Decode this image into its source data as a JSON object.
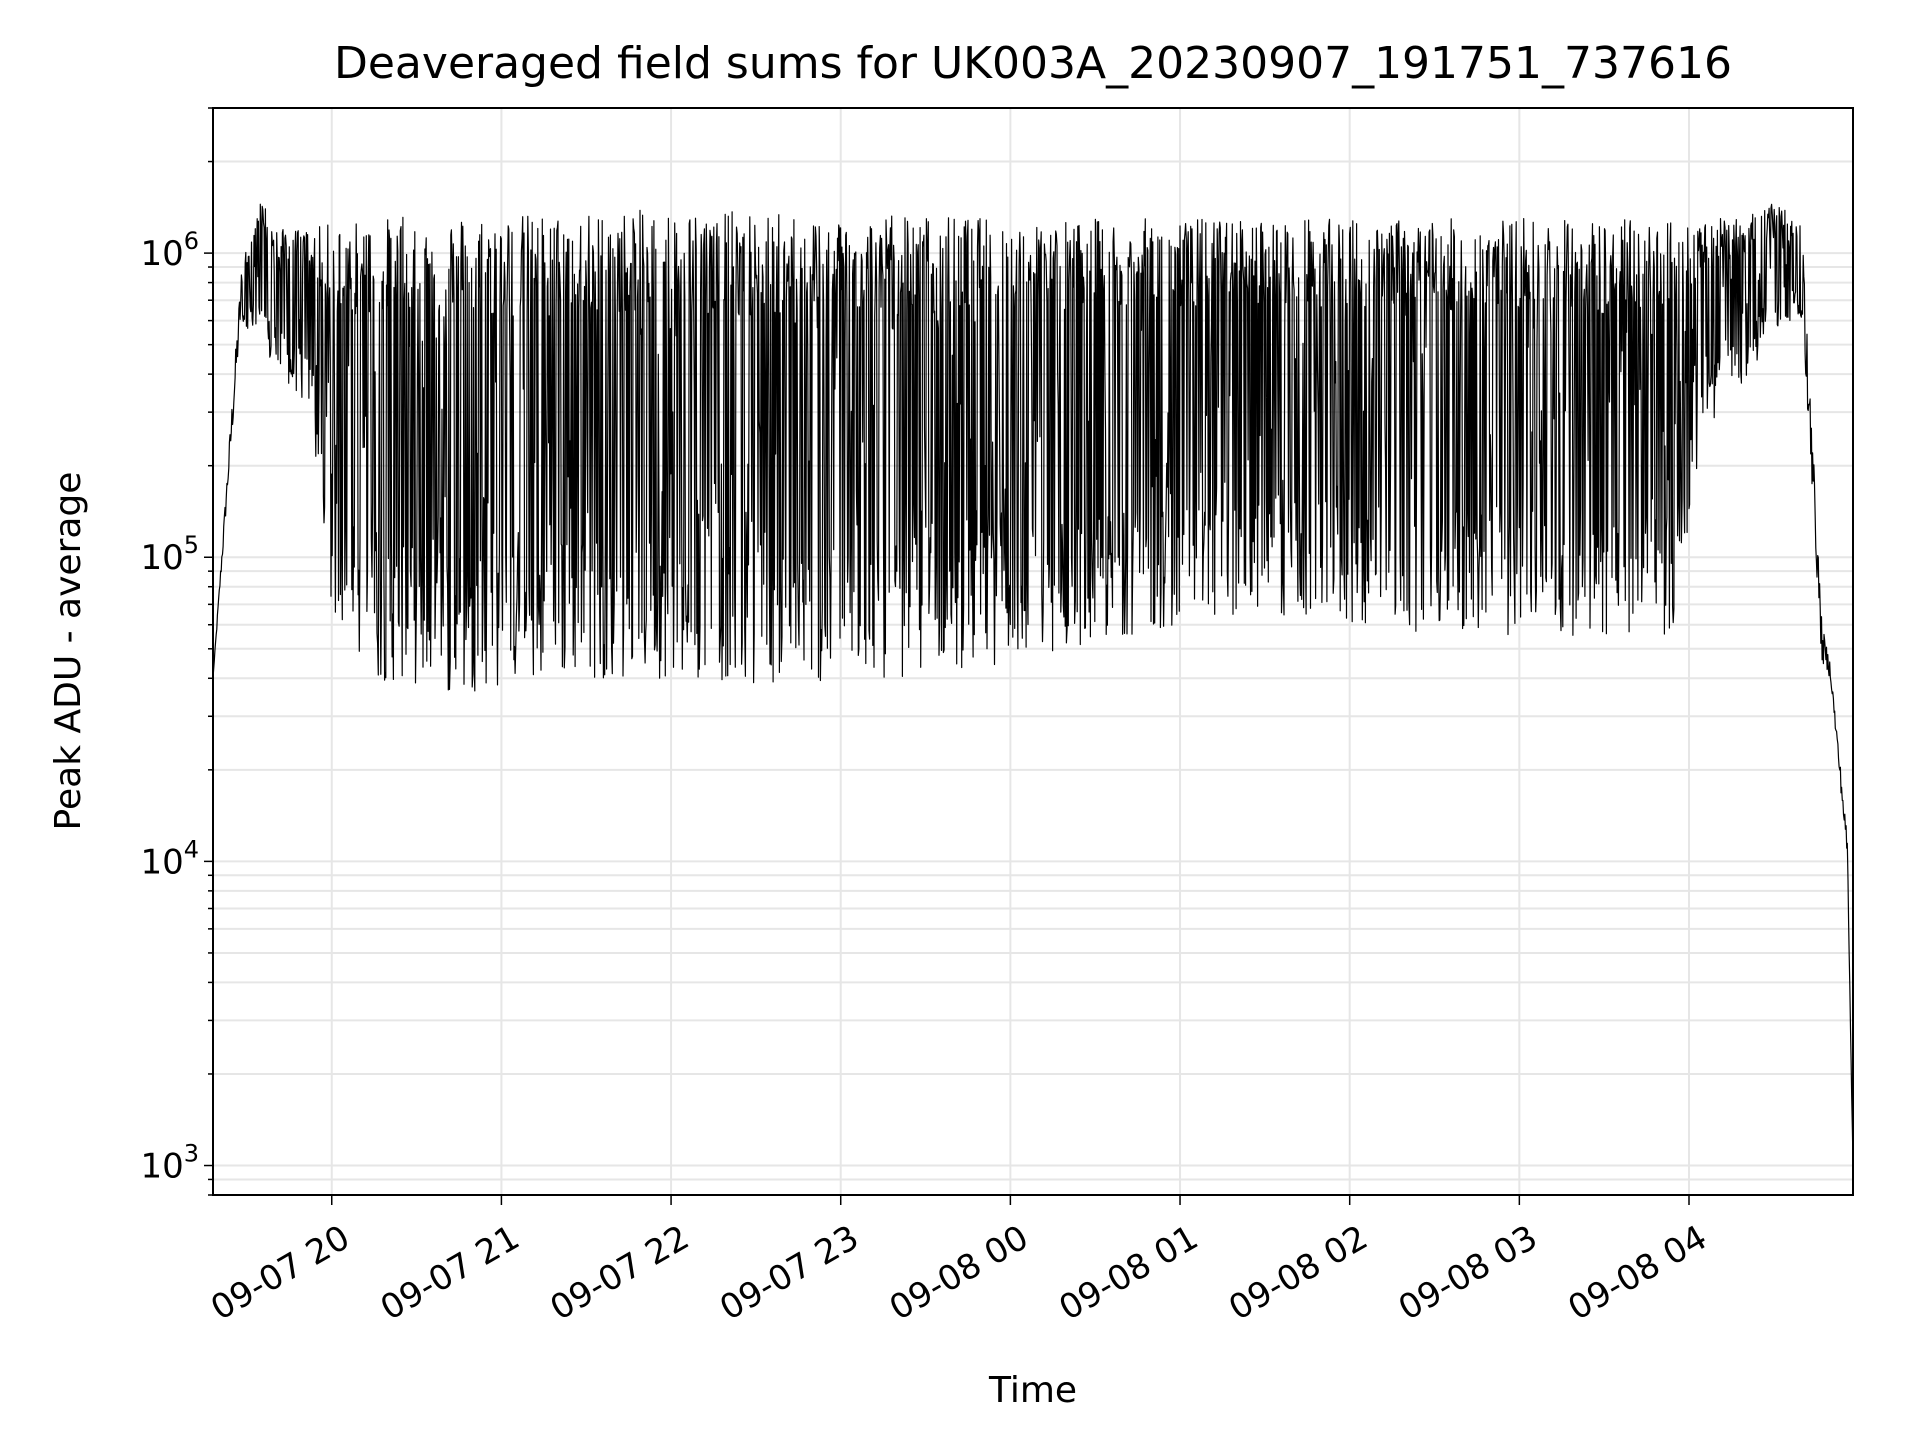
{
  "chart_data": {
    "type": "line",
    "title": "Deaveraged field sums for UK003A_20230907_191751_737616",
    "xlabel": "Time",
    "ylabel": "Peak ADU - average",
    "yscale": "log",
    "ylim": [
      800,
      3000000
    ],
    "xlim": [
      "2023-09-07 19:18",
      "2023-09-08 04:58"
    ],
    "grid": true,
    "line_color": "#000000",
    "x_ticks": [
      "09-07 20",
      "09-07 21",
      "09-07 22",
      "09-07 23",
      "09-08 00",
      "09-08 01",
      "09-08 02",
      "09-08 03",
      "09-08 04"
    ],
    "y_ticks": [
      {
        "base": "10",
        "exp": "3",
        "value": 1000
      },
      {
        "base": "10",
        "exp": "4",
        "value": 10000
      },
      {
        "base": "10",
        "exp": "5",
        "value": 100000
      },
      {
        "base": "10",
        "exp": "6",
        "value": 1000000
      }
    ],
    "envelope": {
      "times": [
        "2023-09-07 19:18",
        "2023-09-07 19:28",
        "2023-09-07 19:35",
        "2023-09-07 19:40",
        "2023-09-07 19:53",
        "2023-09-07 19:58",
        "2023-09-07 20:15",
        "2023-09-07 20:40",
        "2023-09-07 21:20",
        "2023-09-07 22:00",
        "2023-09-07 22:40",
        "2023-09-07 23:20",
        "2023-09-08 00:00",
        "2023-09-08 00:40",
        "2023-09-08 01:20",
        "2023-09-08 02:00",
        "2023-09-08 02:40",
        "2023-09-08 03:20",
        "2023-09-08 03:55",
        "2023-09-08 04:05",
        "2023-09-08 04:18",
        "2023-09-08 04:33",
        "2023-09-08 04:40",
        "2023-09-08 04:47",
        "2023-09-08 04:50",
        "2023-09-08 04:56",
        "2023-09-08 04:58"
      ],
      "upper": [
        40000,
        900000,
        1500000,
        1200000,
        1200000,
        1250000,
        1300000,
        1350000,
        1350000,
        1400000,
        1350000,
        1350000,
        1300000,
        1300000,
        1300000,
        1300000,
        1300000,
        1300000,
        1300000,
        1300000,
        1300000,
        1500000,
        1200000,
        60000,
        45000,
        12000,
        1000
      ],
      "lower": [
        40000,
        600000,
        500000,
        400000,
        300000,
        70000,
        40000,
        35000,
        40000,
        40000,
        38000,
        40000,
        45000,
        55000,
        65000,
        60000,
        55000,
        55000,
        55000,
        250000,
        350000,
        600000,
        600000,
        45000,
        40000,
        10000,
        1000
      ]
    }
  }
}
